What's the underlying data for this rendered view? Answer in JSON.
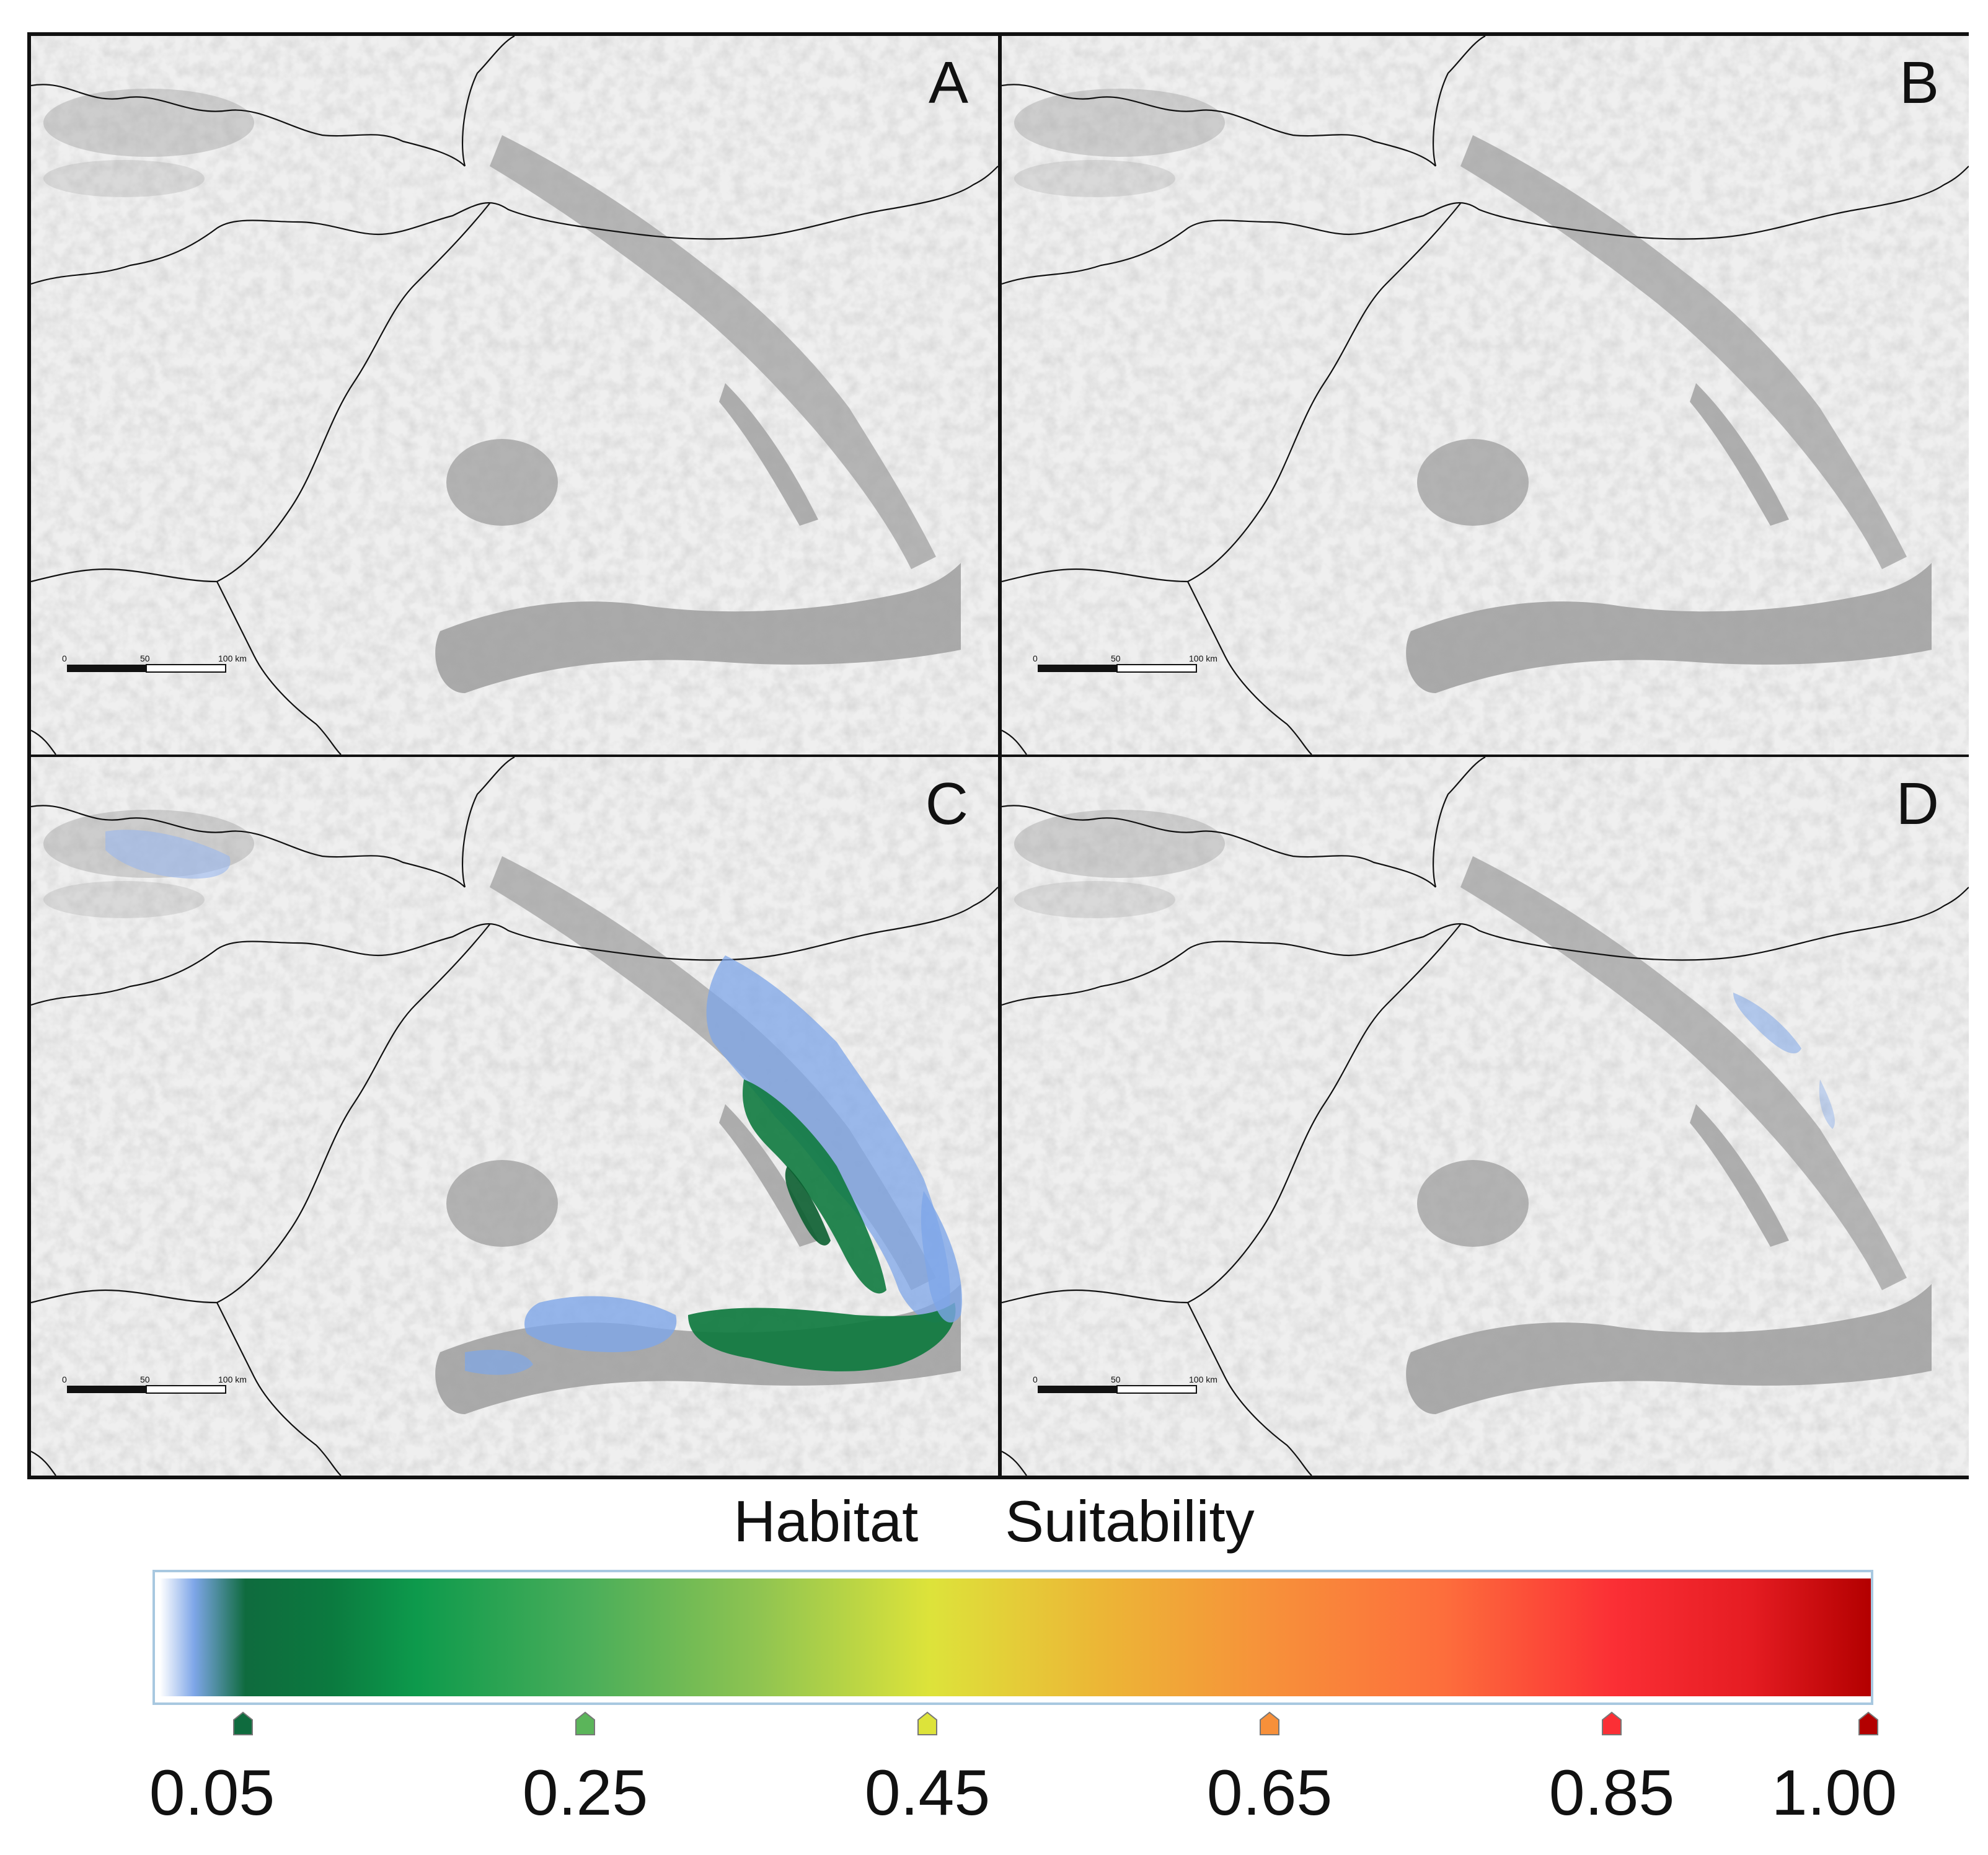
{
  "panels": [
    {
      "label": "A",
      "scalebar": {
        "ticks": [
          "0",
          "50",
          "100 km"
        ]
      }
    },
    {
      "label": "B",
      "scalebar": {
        "ticks": [
          "0",
          "50",
          "100 km"
        ]
      }
    },
    {
      "label": "C",
      "scalebar": {
        "ticks": [
          "0",
          "50",
          "100 km"
        ]
      }
    },
    {
      "label": "D",
      "scalebar": {
        "ticks": [
          "0",
          "50",
          "100 km"
        ]
      }
    }
  ],
  "legend": {
    "title_word1": "Habitat",
    "title_word2": "Suitability",
    "ticks": [
      {
        "value": "0.05",
        "color": "#0f6b3e"
      },
      {
        "value": "0.25",
        "color": "#5bb55a"
      },
      {
        "value": "0.45",
        "color": "#dde33a"
      },
      {
        "value": "0.65",
        "color": "#f7903a"
      },
      {
        "value": "0.85",
        "color": "#fb2f35"
      },
      {
        "value": "1.00",
        "color": "#b30000"
      }
    ]
  },
  "colors": {
    "border": "#111111",
    "relief_dark": "#6b6b6b",
    "relief_light": "#bfbfbf",
    "suitability_low": "#7ea6e8",
    "suitability_green": "#0f7a3f"
  }
}
